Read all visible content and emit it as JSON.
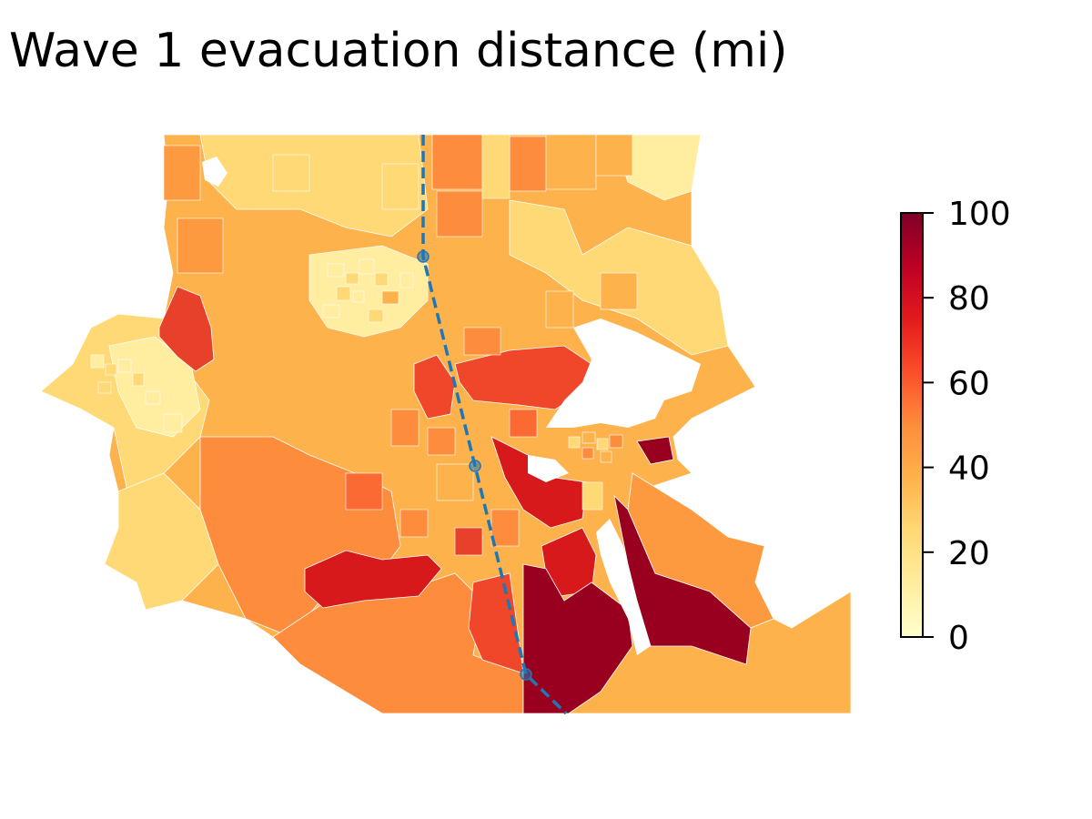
{
  "title": "Wave 1 evacuation distance (mi)",
  "colorbar": {
    "min": 0,
    "max": 100,
    "ticks": [
      0,
      20,
      40,
      60,
      80,
      100
    ],
    "colormap": [
      "#ffffcc",
      "#ffeda0",
      "#fed976",
      "#feb24c",
      "#fd8d3c",
      "#fc4e2a",
      "#e31a1c",
      "#bd0026",
      "#800026"
    ]
  },
  "map": {
    "water_color": "#ffffff",
    "route_color": "#1f77b4",
    "route_waypoints": 3
  }
}
